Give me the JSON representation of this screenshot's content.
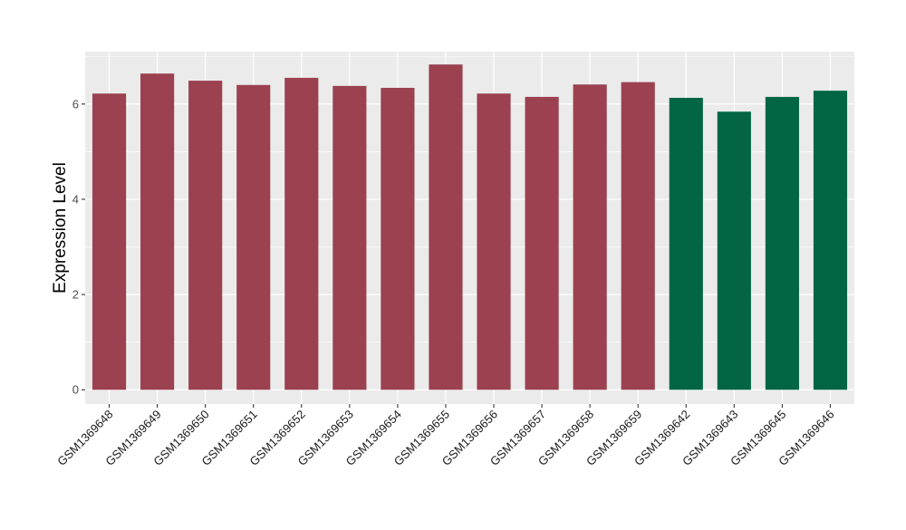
{
  "chart_data": {
    "type": "bar",
    "title": "",
    "xlabel": "",
    "ylabel": "Expression Level",
    "ylim": [
      -0.3,
      7.1
    ],
    "yticks": [
      0,
      2,
      4,
      6
    ],
    "grid": true,
    "legend": "none",
    "categories": [
      "GSM1369648",
      "GSM1369649",
      "GSM1369650",
      "GSM1369651",
      "GSM1369652",
      "GSM1369653",
      "GSM1369654",
      "GSM1369655",
      "GSM1369656",
      "GSM1369657",
      "GSM1369658",
      "GSM1369659",
      "GSM1369642",
      "GSM1369643",
      "GSM1369645",
      "GSM1369646"
    ],
    "values": [
      6.22,
      6.64,
      6.49,
      6.4,
      6.55,
      6.38,
      6.34,
      6.83,
      6.22,
      6.15,
      6.41,
      6.46,
      6.13,
      5.84,
      6.15,
      6.28
    ],
    "groups": [
      0,
      0,
      0,
      0,
      0,
      0,
      0,
      0,
      0,
      0,
      0,
      0,
      1,
      1,
      1,
      1
    ],
    "group_colors": [
      "#9b4150",
      "#026645"
    ],
    "panel_background": "#ebebeb",
    "gridline_color": "#ffffff"
  }
}
